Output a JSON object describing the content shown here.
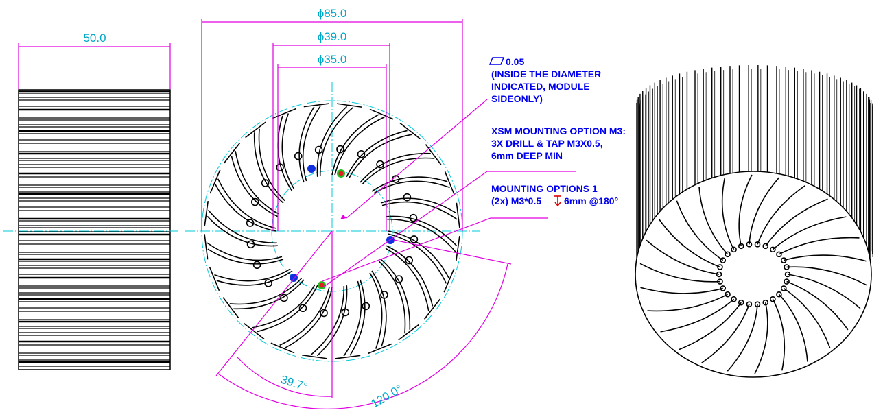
{
  "dimensions": {
    "width": "50.0",
    "diameter_outer": "ϕ85.0",
    "diameter_mid": "ϕ39.0",
    "diameter_inner": "ϕ35.0",
    "angle_small": "39.7°",
    "angle_large": "120.0°"
  },
  "notes": [
    {
      "lines": [
        "0.05",
        "(INSIDE THE DIAMETER",
        "INDICATED, MODULE",
        "SIDEONLY)"
      ]
    },
    {
      "lines": [
        "XSM MOUNTING OPTION M3:",
        "3X DRILL & TAP M3X0.5,",
        "6mm DEEP MIN"
      ]
    },
    {
      "lines": [
        "MOUNTING OPTIONS 1",
        "(2x) M3*0.5",
        "6mm @180°"
      ]
    }
  ]
}
